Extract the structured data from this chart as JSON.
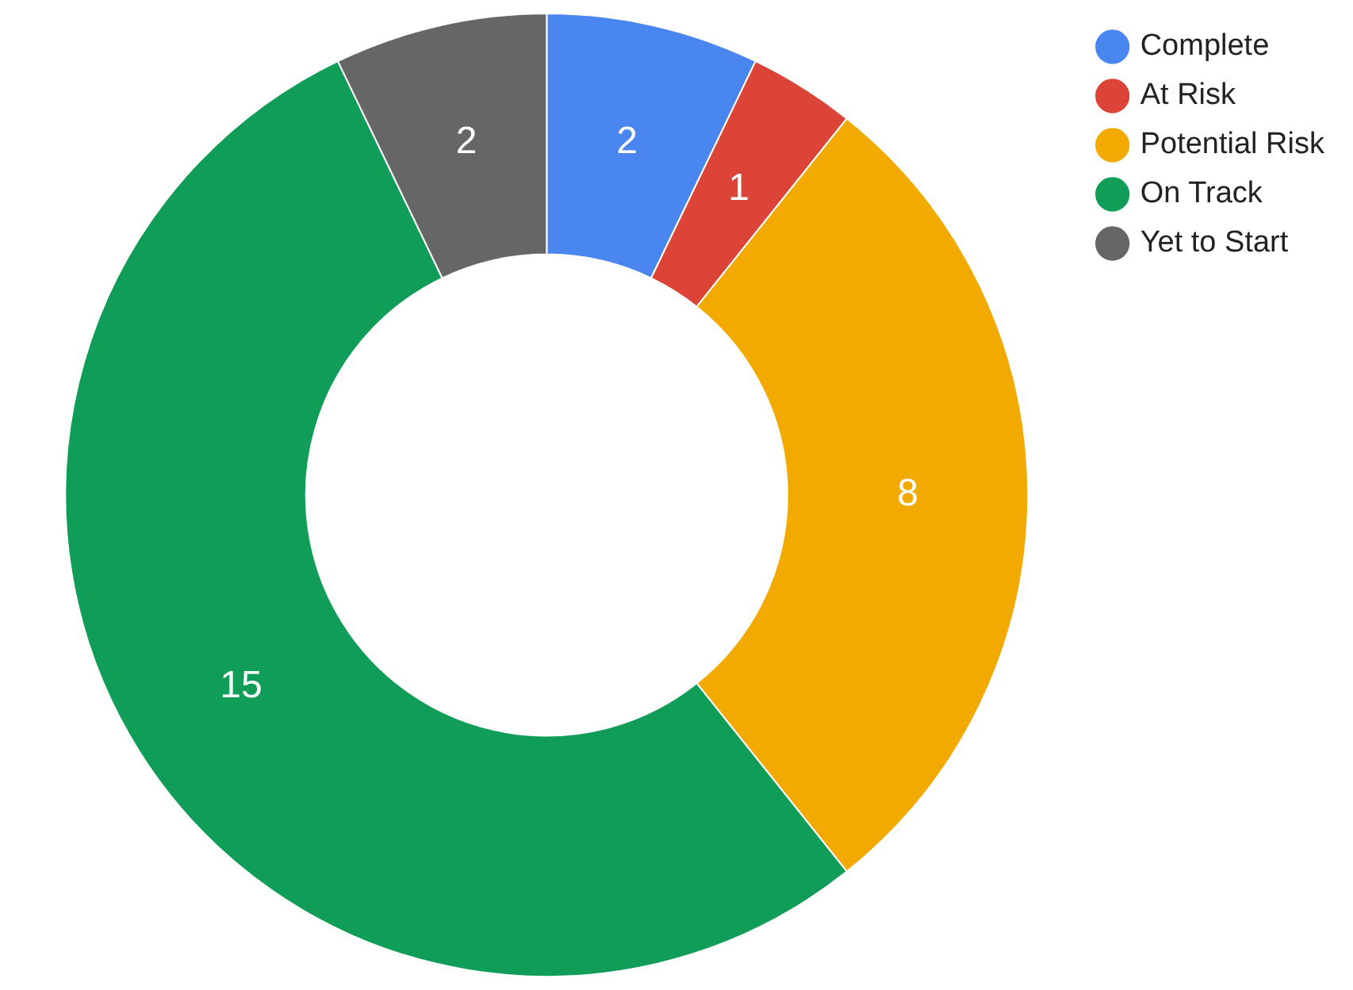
{
  "chart_data": {
    "type": "donut",
    "categories": [
      "Complete",
      "At Risk",
      "Potential Risk",
      "On Track",
      "Yet to Start"
    ],
    "values": [
      2,
      1,
      8,
      15,
      2
    ],
    "colors": [
      "#4a86f0",
      "#db4437",
      "#f2a900",
      "#0f9d58",
      "#666666"
    ],
    "data_labels": true,
    "legend": "top right"
  }
}
